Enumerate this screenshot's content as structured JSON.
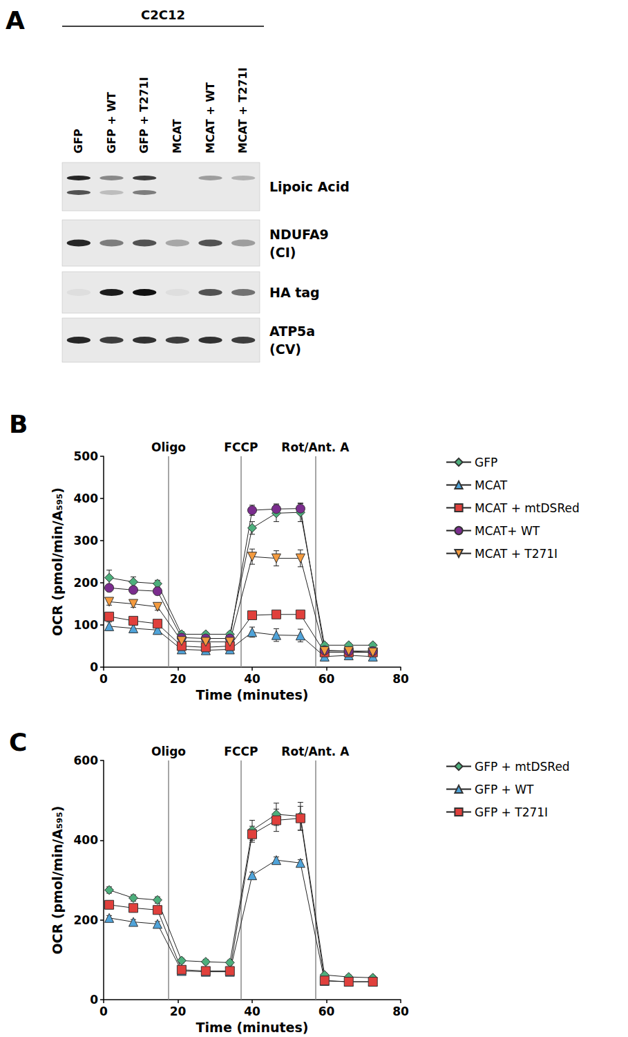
{
  "blot": {
    "panel_label": "A",
    "header": "C2C12",
    "lanes": [
      "GFP",
      "GFP + WT",
      "GFP + T271I",
      "MCAT",
      "MCAT + WT",
      "MCAT + T271I"
    ],
    "rows": [
      {
        "label": [
          "Lipoic Acid"
        ],
        "bands": [
          [
            0.9,
            0.45,
            0.8,
            0.0,
            0.35,
            0.25
          ],
          [
            0.7,
            0.2,
            0.5,
            0.0,
            0.0,
            0.0
          ]
        ]
      },
      {
        "label": [
          "NDUFA9",
          "(CI)"
        ],
        "bands": [
          [
            0.9,
            0.5,
            0.7,
            0.3,
            0.7,
            0.35
          ]
        ]
      },
      {
        "label": [
          "HA tag"
        ],
        "bands": [
          [
            0.05,
            0.95,
            1.0,
            0.05,
            0.7,
            0.55
          ]
        ]
      },
      {
        "label": [
          "ATP5a",
          "(CV)"
        ],
        "bands": [
          [
            0.9,
            0.8,
            0.85,
            0.8,
            0.85,
            0.8
          ]
        ]
      }
    ]
  },
  "chart_data": [
    {
      "panel_label": "B",
      "type": "line",
      "x_label": "Time (minutes)",
      "y_label": "OCR (pmol/min/A₅₉₅)",
      "x": [
        1.5,
        8,
        14.5,
        21,
        27.5,
        34,
        40,
        46.5,
        53,
        59.5,
        66,
        72.5
      ],
      "xlim": [
        0,
        80
      ],
      "xticks": [
        0,
        20,
        40,
        60,
        80
      ],
      "ylim": [
        0,
        500
      ],
      "yticks": [
        0,
        100,
        200,
        300,
        400,
        500
      ],
      "grid": false,
      "legend": "right",
      "annotations": [
        {
          "x": 17.5,
          "label": "Oligo"
        },
        {
          "x": 37,
          "label": "FCCP"
        },
        {
          "x": 57,
          "label": "Rot/Ant. A"
        }
      ],
      "series": [
        {
          "name": "GFP",
          "color": "#4daf7c",
          "marker": "diamond",
          "values": [
            212,
            202,
            198,
            78,
            78,
            78,
            330,
            365,
            367,
            52,
            52,
            52
          ],
          "errors": [
            18,
            12,
            8,
            6,
            5,
            5,
            15,
            20,
            22,
            5,
            5,
            5
          ]
        },
        {
          "name": "MCAT",
          "color": "#4fa3d9",
          "marker": "triangle",
          "values": [
            97,
            92,
            88,
            42,
            40,
            42,
            83,
            76,
            75,
            25,
            28,
            25
          ],
          "errors": [
            10,
            10,
            10,
            8,
            8,
            8,
            12,
            15,
            15,
            5,
            5,
            5
          ]
        },
        {
          "name": "MCAT + mtDSRed",
          "color": "#e0403c",
          "marker": "square",
          "values": [
            120,
            110,
            103,
            50,
            47,
            50,
            123,
            125,
            125,
            35,
            35,
            35
          ],
          "errors": [
            8,
            8,
            8,
            5,
            5,
            5,
            8,
            8,
            8,
            4,
            4,
            4
          ]
        },
        {
          "name": "MCAT+ WT",
          "color": "#7b2d8e",
          "marker": "circle",
          "values": [
            188,
            183,
            180,
            70,
            68,
            68,
            372,
            375,
            376,
            40,
            38,
            38
          ],
          "errors": [
            8,
            8,
            8,
            5,
            5,
            5,
            12,
            12,
            12,
            4,
            4,
            4
          ]
        },
        {
          "name": "MCAT + T271I",
          "color": "#f49b3f",
          "marker": "triangle-down",
          "values": [
            155,
            150,
            143,
            62,
            60,
            60,
            262,
            258,
            258,
            38,
            38,
            35
          ],
          "errors": [
            8,
            8,
            8,
            5,
            5,
            5,
            18,
            18,
            20,
            4,
            4,
            4
          ]
        }
      ]
    },
    {
      "panel_label": "C",
      "type": "line",
      "x_label": "Time (minutes)",
      "y_label": "OCR (pmol/min/A₅₉₅)",
      "x": [
        1.5,
        8,
        14.5,
        21,
        27.5,
        34,
        40,
        46.5,
        53,
        59.5,
        66,
        72.5
      ],
      "xlim": [
        0,
        80
      ],
      "xticks": [
        0,
        20,
        40,
        60,
        80
      ],
      "ylim": [
        0,
        600
      ],
      "yticks": [
        0,
        200,
        400,
        600
      ],
      "grid": false,
      "legend": "right",
      "annotations": [
        {
          "x": 17.5,
          "label": "Oligo"
        },
        {
          "x": 37,
          "label": "FCCP"
        },
        {
          "x": 57,
          "label": "Rot/Ant. A"
        }
      ],
      "series": [
        {
          "name": "GFP + mtDSRed",
          "color": "#4daf7c",
          "marker": "diamond",
          "values": [
            275,
            255,
            250,
            98,
            95,
            93,
            425,
            465,
            460,
            62,
            57,
            55
          ],
          "errors": [
            8,
            8,
            8,
            6,
            6,
            6,
            25,
            28,
            35,
            5,
            5,
            5
          ]
        },
        {
          "name": "GFP + WT",
          "color": "#4fa3d9",
          "marker": "triangle",
          "values": [
            205,
            195,
            190,
            72,
            70,
            70,
            312,
            350,
            343,
            47,
            45,
            45
          ],
          "errors": [
            6,
            6,
            6,
            4,
            4,
            4,
            8,
            8,
            8,
            4,
            4,
            4
          ]
        },
        {
          "name": "GFP + T271I",
          "color": "#e0403c",
          "marker": "square",
          "values": [
            238,
            230,
            225,
            75,
            72,
            72,
            415,
            450,
            455,
            48,
            45,
            45
          ],
          "errors": [
            10,
            10,
            10,
            5,
            5,
            5,
            20,
            28,
            30,
            4,
            4,
            4
          ]
        }
      ]
    }
  ]
}
